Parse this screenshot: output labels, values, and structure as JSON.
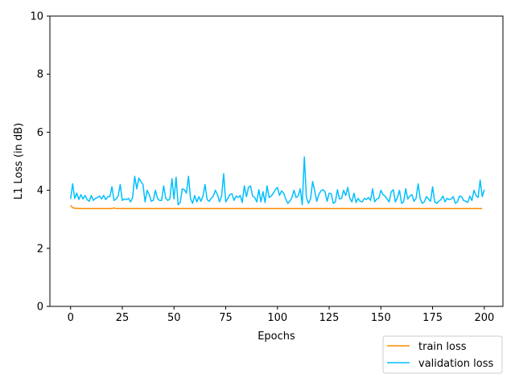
{
  "chart_data": {
    "type": "line",
    "title": "",
    "xlabel": "Epochs",
    "ylabel": "L1 Loss (in dB)",
    "xlim": [
      -10,
      209
    ],
    "ylim": [
      0,
      10
    ],
    "xticks": [
      "0",
      "25",
      "50",
      "75",
      "100",
      "125",
      "150",
      "175",
      "200"
    ],
    "yticks": [
      "0",
      "2",
      "4",
      "6",
      "8",
      "10"
    ],
    "grid": false,
    "legend_placement": "lower-right-outside",
    "series": [
      {
        "name": "train loss",
        "color": "#ff8c00",
        "points": [
          [
            0,
            3.48
          ],
          [
            1,
            3.4
          ],
          [
            2,
            3.38
          ],
          [
            5,
            3.37
          ],
          [
            20,
            3.37
          ],
          [
            21,
            3.39
          ],
          [
            22,
            3.37
          ],
          [
            50,
            3.37
          ],
          [
            100,
            3.37
          ],
          [
            150,
            3.37
          ],
          [
            199,
            3.37
          ]
        ]
      },
      {
        "name": "validation loss",
        "color": "#00bfff",
        "points": [
          [
            0,
            3.7
          ],
          [
            1,
            4.22
          ],
          [
            2,
            3.72
          ],
          [
            3,
            3.9
          ],
          [
            4,
            3.68
          ],
          [
            5,
            3.85
          ],
          [
            6,
            3.7
          ],
          [
            7,
            3.82
          ],
          [
            8,
            3.68
          ],
          [
            9,
            3.62
          ],
          [
            10,
            3.82
          ],
          [
            11,
            3.65
          ],
          [
            12,
            3.72
          ],
          [
            13,
            3.75
          ],
          [
            14,
            3.8
          ],
          [
            15,
            3.7
          ],
          [
            16,
            3.82
          ],
          [
            17,
            3.68
          ],
          [
            18,
            3.78
          ],
          [
            19,
            3.78
          ],
          [
            20,
            4.12
          ],
          [
            21,
            3.65
          ],
          [
            22,
            3.7
          ],
          [
            23,
            3.8
          ],
          [
            24,
            4.2
          ],
          [
            25,
            3.65
          ],
          [
            26,
            3.7
          ],
          [
            27,
            3.68
          ],
          [
            28,
            3.72
          ],
          [
            29,
            3.6
          ],
          [
            30,
            3.75
          ],
          [
            31,
            4.48
          ],
          [
            32,
            4.05
          ],
          [
            33,
            4.42
          ],
          [
            34,
            4.3
          ],
          [
            35,
            4.2
          ],
          [
            36,
            3.6
          ],
          [
            37,
            4.0
          ],
          [
            38,
            3.85
          ],
          [
            39,
            3.62
          ],
          [
            40,
            3.65
          ],
          [
            41,
            4.0
          ],
          [
            42,
            3.72
          ],
          [
            43,
            3.65
          ],
          [
            44,
            3.65
          ],
          [
            45,
            4.15
          ],
          [
            46,
            3.72
          ],
          [
            47,
            3.65
          ],
          [
            48,
            3.7
          ],
          [
            49,
            4.4
          ],
          [
            50,
            3.7
          ],
          [
            51,
            4.45
          ],
          [
            52,
            3.5
          ],
          [
            53,
            3.58
          ],
          [
            54,
            4.05
          ],
          [
            55,
            4.02
          ],
          [
            56,
            3.9
          ],
          [
            57,
            4.48
          ],
          [
            58,
            3.7
          ],
          [
            59,
            3.55
          ],
          [
            60,
            3.82
          ],
          [
            61,
            3.6
          ],
          [
            62,
            3.78
          ],
          [
            63,
            3.62
          ],
          [
            64,
            3.8
          ],
          [
            65,
            4.2
          ],
          [
            66,
            3.68
          ],
          [
            67,
            3.62
          ],
          [
            68,
            3.72
          ],
          [
            69,
            3.8
          ],
          [
            70,
            4.0
          ],
          [
            71,
            3.85
          ],
          [
            72,
            3.6
          ],
          [
            73,
            3.8
          ],
          [
            74,
            4.57
          ],
          [
            75,
            3.6
          ],
          [
            76,
            3.72
          ],
          [
            77,
            3.85
          ],
          [
            78,
            3.88
          ],
          [
            79,
            3.65
          ],
          [
            80,
            3.8
          ],
          [
            81,
            3.75
          ],
          [
            82,
            3.82
          ],
          [
            83,
            3.58
          ],
          [
            84,
            4.15
          ],
          [
            85,
            3.78
          ],
          [
            86,
            4.1
          ],
          [
            87,
            4.15
          ],
          [
            88,
            3.8
          ],
          [
            89,
            3.75
          ],
          [
            90,
            3.6
          ],
          [
            91,
            4.02
          ],
          [
            92,
            3.6
          ],
          [
            93,
            3.95
          ],
          [
            94,
            3.58
          ],
          [
            95,
            4.15
          ],
          [
            96,
            3.75
          ],
          [
            97,
            3.8
          ],
          [
            98,
            3.9
          ],
          [
            99,
            4.02
          ],
          [
            100,
            4.1
          ],
          [
            101,
            3.82
          ],
          [
            102,
            3.98
          ],
          [
            103,
            3.9
          ],
          [
            104,
            3.7
          ],
          [
            105,
            3.55
          ],
          [
            106,
            3.62
          ],
          [
            107,
            3.75
          ],
          [
            108,
            4.0
          ],
          [
            109,
            3.75
          ],
          [
            110,
            3.8
          ],
          [
            111,
            4.05
          ],
          [
            112,
            3.5
          ],
          [
            113,
            5.15
          ],
          [
            114,
            3.75
          ],
          [
            115,
            3.55
          ],
          [
            116,
            3.7
          ],
          [
            117,
            4.3
          ],
          [
            118,
            3.98
          ],
          [
            119,
            3.62
          ],
          [
            120,
            3.85
          ],
          [
            121,
            3.98
          ],
          [
            122,
            4.02
          ],
          [
            123,
            3.95
          ],
          [
            124,
            3.62
          ],
          [
            125,
            3.9
          ],
          [
            126,
            3.88
          ],
          [
            127,
            3.55
          ],
          [
            128,
            3.6
          ],
          [
            129,
            4.02
          ],
          [
            130,
            3.7
          ],
          [
            131,
            3.72
          ],
          [
            132,
            4.0
          ],
          [
            133,
            3.82
          ],
          [
            134,
            4.1
          ],
          [
            135,
            3.72
          ],
          [
            136,
            3.6
          ],
          [
            137,
            3.9
          ],
          [
            138,
            3.58
          ],
          [
            139,
            3.72
          ],
          [
            140,
            3.62
          ],
          [
            141,
            3.6
          ],
          [
            142,
            3.72
          ],
          [
            143,
            3.68
          ],
          [
            144,
            3.75
          ],
          [
            145,
            3.65
          ],
          [
            146,
            4.05
          ],
          [
            147,
            3.6
          ],
          [
            148,
            3.7
          ],
          [
            149,
            3.72
          ],
          [
            150,
            4.0
          ],
          [
            151,
            3.85
          ],
          [
            152,
            3.8
          ],
          [
            153,
            3.7
          ],
          [
            154,
            3.6
          ],
          [
            155,
            3.95
          ],
          [
            156,
            4.02
          ],
          [
            157,
            3.6
          ],
          [
            158,
            3.75
          ],
          [
            159,
            4.0
          ],
          [
            160,
            3.55
          ],
          [
            161,
            3.6
          ],
          [
            162,
            4.05
          ],
          [
            163,
            3.7
          ],
          [
            164,
            3.8
          ],
          [
            165,
            3.85
          ],
          [
            166,
            3.62
          ],
          [
            167,
            3.72
          ],
          [
            168,
            4.22
          ],
          [
            169,
            3.72
          ],
          [
            170,
            3.55
          ],
          [
            171,
            3.6
          ],
          [
            172,
            3.78
          ],
          [
            173,
            3.7
          ],
          [
            174,
            3.62
          ],
          [
            175,
            4.12
          ],
          [
            176,
            3.6
          ],
          [
            177,
            3.55
          ],
          [
            178,
            3.62
          ],
          [
            179,
            3.68
          ],
          [
            180,
            3.8
          ],
          [
            181,
            3.6
          ],
          [
            182,
            3.72
          ],
          [
            183,
            3.68
          ],
          [
            184,
            3.7
          ],
          [
            185,
            3.78
          ],
          [
            186,
            3.55
          ],
          [
            187,
            3.6
          ],
          [
            188,
            3.8
          ],
          [
            189,
            3.78
          ],
          [
            190,
            3.65
          ],
          [
            191,
            3.62
          ],
          [
            192,
            3.58
          ],
          [
            193,
            3.8
          ],
          [
            194,
            3.65
          ],
          [
            195,
            4.0
          ],
          [
            196,
            3.82
          ],
          [
            197,
            3.75
          ],
          [
            198,
            4.35
          ],
          [
            199,
            3.78
          ],
          [
            200,
            4.02
          ]
        ]
      }
    ]
  }
}
